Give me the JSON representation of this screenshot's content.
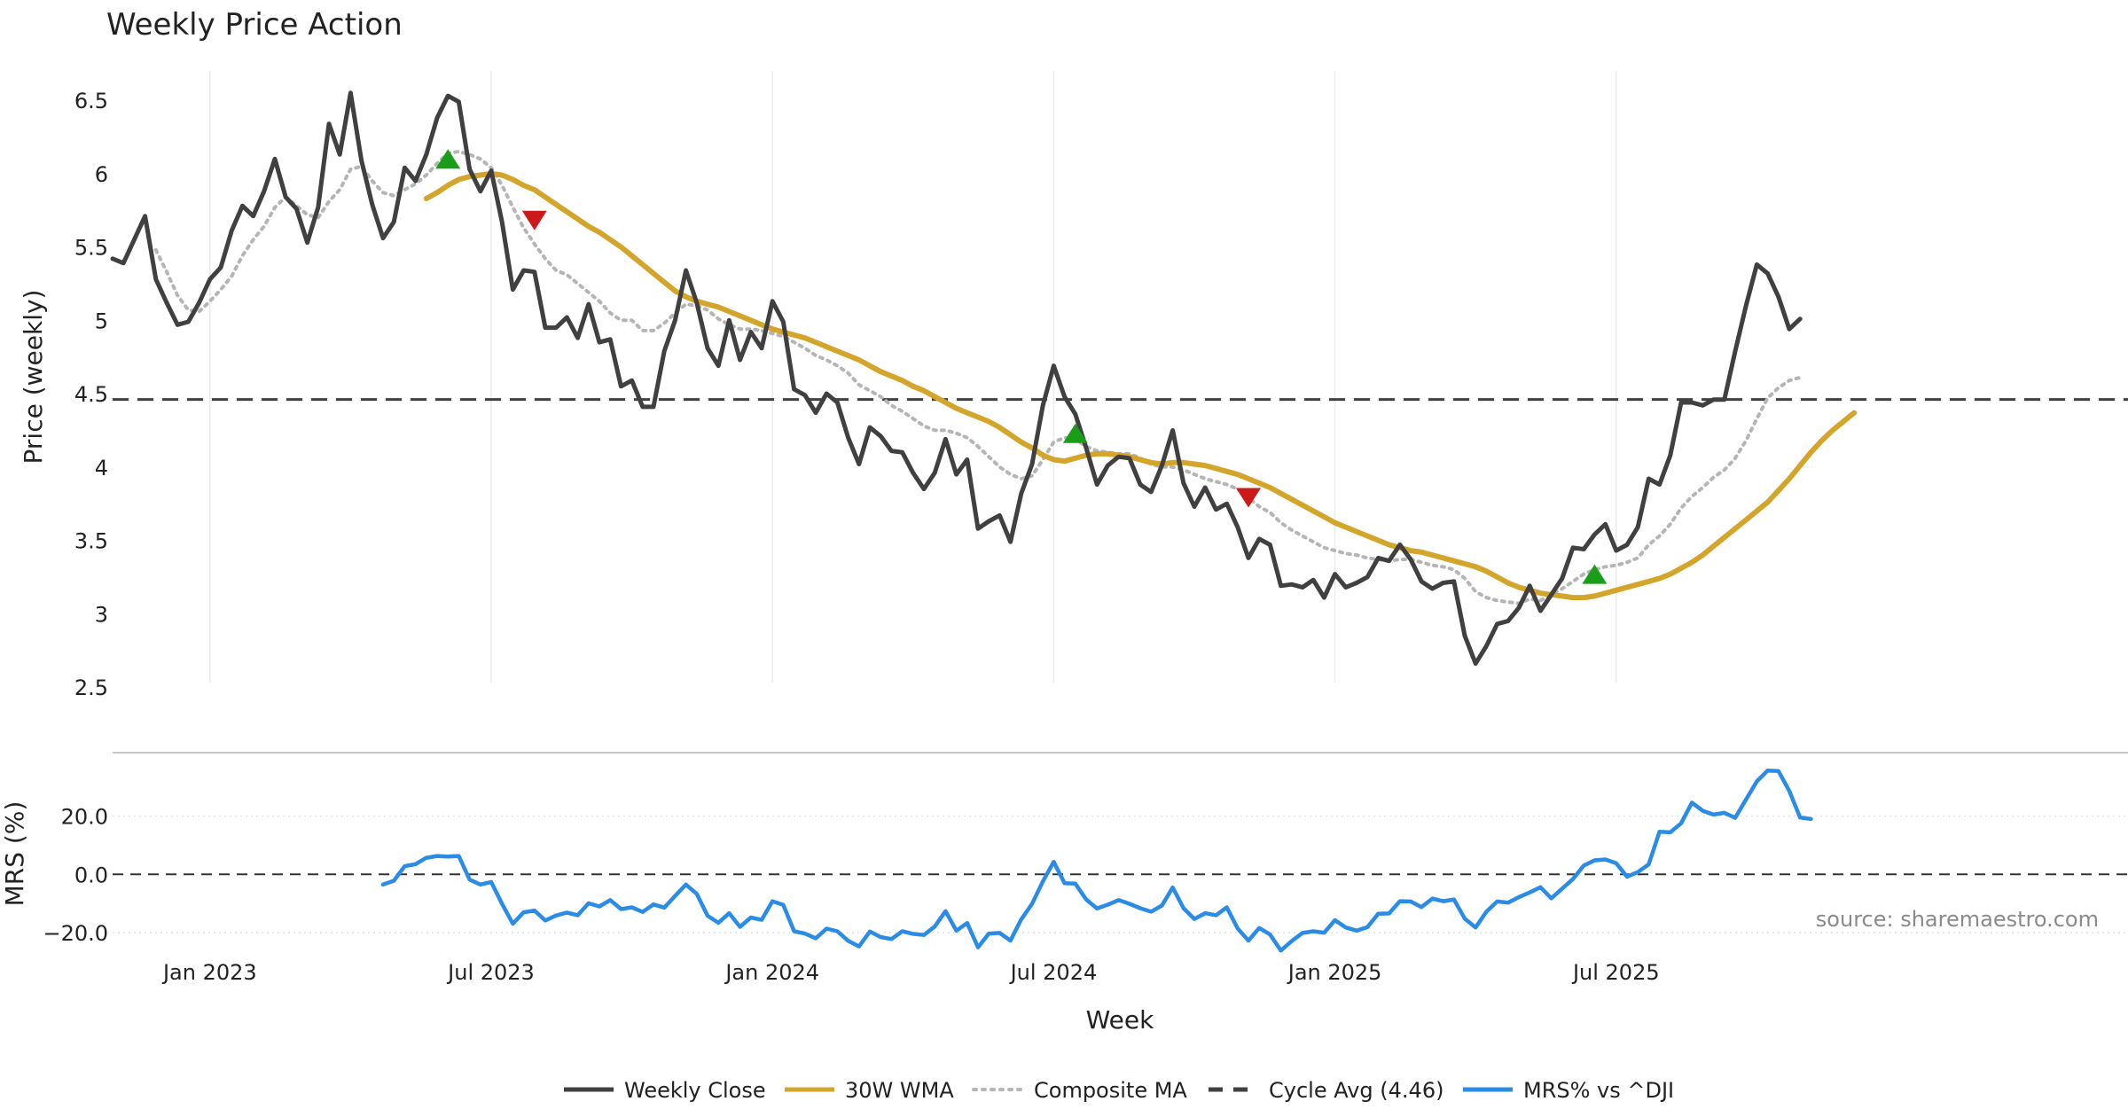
{
  "chart_data": {
    "title": "Weekly Price Action",
    "source_text": "source: sharemaestro.com",
    "xlabel": "Week",
    "x_ticks": [
      "Jan 2023",
      "Jul 2023",
      "Jan 2024",
      "Jul 2024",
      "Jan 2025",
      "Jul 2025"
    ],
    "price_panel": {
      "type": "line",
      "ylabel": "Price (weekly)",
      "ylim": [
        2.5,
        6.7
      ],
      "y_ticks": [
        "2.5",
        "3",
        "3.5",
        "4",
        "4.5",
        "5",
        "5.5",
        "6",
        "6.5"
      ],
      "grid_x": true,
      "series": [
        {
          "name": "Weekly Close",
          "color": "#404040",
          "style": "solid",
          "values": [
            5.42,
            5.39,
            5.55,
            5.71,
            5.28,
            5.12,
            4.97,
            4.99,
            5.12,
            5.28,
            5.36,
            5.61,
            5.78,
            5.71,
            5.88,
            6.1,
            5.84,
            5.76,
            5.53,
            5.77,
            6.34,
            6.13,
            6.55,
            6.09,
            5.79,
            5.56,
            5.67,
            6.04,
            5.95,
            6.13,
            6.38,
            6.53,
            6.49,
            6.03,
            5.88,
            6.02,
            5.67,
            5.21,
            5.34,
            5.33,
            4.95,
            4.95,
            5.02,
            4.88,
            5.11,
            4.85,
            4.87,
            4.55,
            4.59,
            4.41,
            4.41,
            4.79,
            5.0,
            5.34,
            5.12,
            4.81,
            4.69,
            5.0,
            4.73,
            4.92,
            4.81,
            5.13,
            4.99,
            4.53,
            4.49,
            4.37,
            4.5,
            4.44,
            4.2,
            4.02,
            4.27,
            4.21,
            4.11,
            4.1,
            3.96,
            3.85,
            3.96,
            4.19,
            3.95,
            4.05,
            3.58,
            3.63,
            3.67,
            3.49,
            3.82,
            4.02,
            4.42,
            4.69,
            4.48,
            4.36,
            4.13,
            3.88,
            4.01,
            4.07,
            4.06,
            3.88,
            3.83,
            4.01,
            4.25,
            3.89,
            3.73,
            3.86,
            3.71,
            3.75,
            3.59,
            3.38,
            3.51,
            3.47,
            3.19,
            3.2,
            3.18,
            3.23,
            3.11,
            3.27,
            3.18,
            3.21,
            3.25,
            3.38,
            3.36,
            3.47,
            3.37,
            3.22,
            3.17,
            3.21,
            3.22,
            2.85,
            2.66,
            2.78,
            2.93,
            2.95,
            3.04,
            3.19,
            3.02,
            3.13,
            3.24,
            3.45,
            3.44,
            3.54,
            3.61,
            3.43,
            3.47,
            3.59,
            3.92,
            3.88,
            4.08,
            4.44,
            4.44,
            4.42,
            4.46,
            4.46,
            4.79,
            5.1,
            5.38,
            5.32,
            5.16,
            4.94,
            5.01
          ]
        },
        {
          "name": "30W WMA",
          "color": "#d4a52b",
          "style": "solid",
          "values": [
            null,
            null,
            null,
            null,
            null,
            null,
            null,
            null,
            null,
            null,
            null,
            null,
            null,
            null,
            null,
            null,
            null,
            null,
            null,
            null,
            null,
            null,
            null,
            null,
            null,
            null,
            null,
            null,
            null,
            5.83,
            5.87,
            5.92,
            5.96,
            5.98,
            5.99,
            6.0,
            5.99,
            5.96,
            5.92,
            5.89,
            5.84,
            5.79,
            5.74,
            5.69,
            5.64,
            5.6,
            5.55,
            5.5,
            5.44,
            5.38,
            5.32,
            5.26,
            5.2,
            5.16,
            5.13,
            5.11,
            5.09,
            5.06,
            5.03,
            5.0,
            4.97,
            4.94,
            4.92,
            4.9,
            4.88,
            4.85,
            4.82,
            4.79,
            4.76,
            4.73,
            4.69,
            4.65,
            4.62,
            4.59,
            4.55,
            4.52,
            4.48,
            4.44,
            4.4,
            4.37,
            4.34,
            4.31,
            4.27,
            4.22,
            4.17,
            4.13,
            4.08,
            4.05,
            4.04,
            4.06,
            4.08,
            4.09,
            4.09,
            4.08,
            4.07,
            4.05,
            4.03,
            4.02,
            4.03,
            4.03,
            4.02,
            4.01,
            3.99,
            3.97,
            3.95,
            3.92,
            3.89,
            3.86,
            3.82,
            3.78,
            3.74,
            3.7,
            3.66,
            3.62,
            3.59,
            3.56,
            3.53,
            3.5,
            3.47,
            3.45,
            3.43,
            3.42,
            3.4,
            3.38,
            3.36,
            3.34,
            3.32,
            3.29,
            3.25,
            3.21,
            3.18,
            3.16,
            3.14,
            3.13,
            3.12,
            3.11,
            3.11,
            3.12,
            3.14,
            3.16,
            3.18,
            3.2,
            3.22,
            3.24,
            3.27,
            3.31,
            3.35,
            3.4,
            3.46,
            3.52,
            3.58,
            3.64,
            3.7,
            3.76,
            3.84,
            3.92,
            4.01,
            4.1,
            4.18,
            4.25,
            4.31,
            4.37
          ]
        },
        {
          "name": "Composite MA",
          "color": "#b5b5b5",
          "style": "dotted",
          "values": [
            null,
            null,
            null,
            null,
            5.48,
            5.33,
            5.17,
            5.07,
            5.06,
            5.13,
            5.21,
            5.3,
            5.44,
            5.55,
            5.64,
            5.77,
            5.84,
            5.78,
            5.72,
            5.7,
            5.81,
            5.89,
            6.03,
            6.05,
            5.95,
            5.87,
            5.85,
            5.89,
            5.93,
            5.99,
            6.07,
            6.14,
            6.15,
            6.13,
            6.1,
            6.04,
            5.92,
            5.77,
            5.63,
            5.52,
            5.42,
            5.34,
            5.31,
            5.25,
            5.19,
            5.13,
            5.05,
            5.0,
            5.0,
            4.93,
            4.93,
            4.98,
            5.05,
            5.11,
            5.1,
            5.07,
            5.01,
            4.97,
            4.94,
            4.94,
            4.93,
            4.91,
            4.89,
            4.85,
            4.81,
            4.76,
            4.73,
            4.69,
            4.64,
            4.56,
            4.52,
            4.48,
            4.42,
            4.38,
            4.33,
            4.28,
            4.25,
            4.25,
            4.23,
            4.2,
            4.14,
            4.07,
            4.0,
            3.95,
            3.92,
            3.94,
            4.05,
            4.17,
            4.2,
            4.19,
            4.14,
            4.11,
            4.1,
            4.09,
            4.09,
            4.06,
            4.02,
            4.0,
            4.0,
            3.98,
            3.95,
            3.92,
            3.9,
            3.88,
            3.85,
            3.79,
            3.73,
            3.69,
            3.62,
            3.57,
            3.53,
            3.49,
            3.45,
            3.43,
            3.41,
            3.4,
            3.38,
            3.37,
            3.36,
            3.37,
            3.37,
            3.35,
            3.33,
            3.32,
            3.3,
            3.24,
            3.15,
            3.11,
            3.09,
            3.08,
            3.07,
            3.1,
            3.09,
            3.13,
            3.17,
            3.22,
            3.27,
            3.3,
            3.32,
            3.33,
            3.35,
            3.38,
            3.47,
            3.53,
            3.61,
            3.72,
            3.8,
            3.86,
            3.93,
            3.98,
            4.06,
            4.18,
            4.33,
            4.47,
            4.54,
            4.59,
            4.61
          ]
        },
        {
          "name": "Cycle Avg (4.46)",
          "color": "#404040",
          "style": "dashed",
          "hline": 4.46
        }
      ],
      "signals": [
        {
          "type": "buy",
          "index": 31,
          "value": 6.1,
          "color": "#1a9e1a"
        },
        {
          "type": "sell",
          "index": 39,
          "value": 5.68,
          "color": "#cc1a1a"
        },
        {
          "type": "buy",
          "index": 89,
          "value": 4.23,
          "color": "#1a9e1a"
        },
        {
          "type": "sell",
          "index": 105,
          "value": 3.79,
          "color": "#cc1a1a"
        },
        {
          "type": "buy",
          "index": 137,
          "value": 3.27,
          "color": "#1a9e1a"
        }
      ]
    },
    "mrs_panel": {
      "type": "line",
      "ylabel": "MRS (%)",
      "ylim": [
        -30,
        39
      ],
      "y_ticks": [
        "20.0",
        "0.0",
        "−20.0"
      ],
      "zero_line": 0,
      "series": [
        {
          "name": "MRS% vs ^DJI",
          "color": "#2b8ce6",
          "style": "solid",
          "values": [
            null,
            null,
            null,
            null,
            null,
            null,
            null,
            null,
            null,
            null,
            null,
            null,
            null,
            null,
            null,
            null,
            null,
            null,
            null,
            null,
            null,
            null,
            null,
            null,
            null,
            -3.5,
            -2.2,
            2.8,
            3.5,
            5.7,
            6.3,
            6.1,
            6.3,
            -1.8,
            -3.5,
            -2.6,
            -10.1,
            -16.9,
            -13.0,
            -12.4,
            -15.8,
            -14.1,
            -13.1,
            -14.0,
            -9.9,
            -11.0,
            -8.8,
            -11.9,
            -11.3,
            -12.9,
            -10.3,
            -11.4,
            -7.4,
            -3.5,
            -6.7,
            -14.2,
            -16.6,
            -13.3,
            -18.0,
            -14.8,
            -15.6,
            -9.2,
            -10.5,
            -19.5,
            -20.3,
            -21.9,
            -18.6,
            -19.5,
            -22.8,
            -24.7,
            -19.6,
            -21.5,
            -22.2,
            -19.5,
            -20.4,
            -20.8,
            -17.9,
            -12.6,
            -19.3,
            -16.7,
            -25.0,
            -20.3,
            -20.1,
            -22.7,
            -15.4,
            -10.1,
            -2.4,
            4.3,
            -3.0,
            -3.2,
            -8.6,
            -11.7,
            -10.4,
            -8.8,
            -10.1,
            -11.6,
            -12.8,
            -10.7,
            -4.5,
            -11.6,
            -15.3,
            -13.3,
            -14.0,
            -11.3,
            -18.5,
            -22.7,
            -18.4,
            -20.6,
            -26.1,
            -22.9,
            -20.1,
            -19.5,
            -20.0,
            -15.7,
            -18.2,
            -19.3,
            -18.1,
            -13.5,
            -13.4,
            -9.2,
            -9.3,
            -11.2,
            -8.3,
            -9.2,
            -8.6,
            -15.2,
            -18.2,
            -12.8,
            -9.3,
            -9.7,
            -7.8,
            -6.2,
            -4.4,
            -8.2,
            -4.9,
            -1.6,
            3.0,
            4.8,
            5.1,
            3.8,
            -0.8,
            0.8,
            3.4,
            14.6,
            14.4,
            17.5,
            24.6,
            21.8,
            20.5,
            21.1,
            19.4,
            25.7,
            31.9,
            35.6,
            35.4,
            28.6,
            19.5,
            19.0
          ]
        }
      ]
    },
    "legend": {
      "placement": "bottom-center",
      "entries": [
        {
          "label": "Weekly Close",
          "color": "#404040",
          "style": "solid"
        },
        {
          "label": "30W WMA",
          "color": "#d4a52b",
          "style": "solid"
        },
        {
          "label": "Composite MA",
          "color": "#b5b5b5",
          "style": "dotted"
        },
        {
          "label": "Cycle Avg (4.46)",
          "color": "#404040",
          "style": "dashed"
        },
        {
          "label": "MRS% vs ^DJI",
          "color": "#2b8ce6",
          "style": "solid"
        }
      ]
    }
  }
}
